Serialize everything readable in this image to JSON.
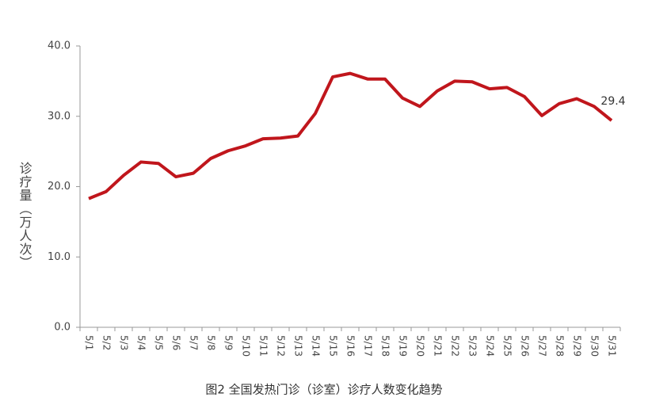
{
  "chart_data": {
    "type": "line",
    "caption": "图2 全国发热门诊（诊室）诊疗人数变化趋势",
    "y_label": "诊疗量（万人次）",
    "categories": [
      "5/1",
      "5/2",
      "5/3",
      "5/4",
      "5/5",
      "5/6",
      "5/7",
      "5/8",
      "5/9",
      "5/10",
      "5/11",
      "5/12",
      "5/13",
      "5/14",
      "5/15",
      "5/16",
      "5/17",
      "5/18",
      "5/19",
      "5/20",
      "5/21",
      "5/22",
      "5/23",
      "5/24",
      "5/25",
      "5/26",
      "5/27",
      "5/28",
      "5/29",
      "5/30",
      "5/31"
    ],
    "series": [
      {
        "color": "#c0161c",
        "values": [
          18.3,
          19.3,
          21.6,
          23.5,
          23.3,
          21.4,
          21.9,
          24.0,
          25.1,
          25.8,
          26.8,
          26.9,
          27.2,
          30.4,
          35.6,
          36.1,
          35.3,
          35.3,
          32.6,
          31.4,
          33.6,
          35.0,
          34.9,
          33.9,
          34.1,
          32.8,
          30.1,
          31.8,
          32.5,
          31.4,
          29.4
        ]
      }
    ],
    "ylim": [
      0,
      40
    ],
    "yticks": [
      {
        "value": 0,
        "label": "0.0"
      },
      {
        "value": 10,
        "label": "10.0"
      },
      {
        "value": 20,
        "label": "20.0"
      },
      {
        "value": 30,
        "label": "30.0"
      },
      {
        "value": 40,
        "label": "40.0"
      }
    ],
    "grid": false
  }
}
